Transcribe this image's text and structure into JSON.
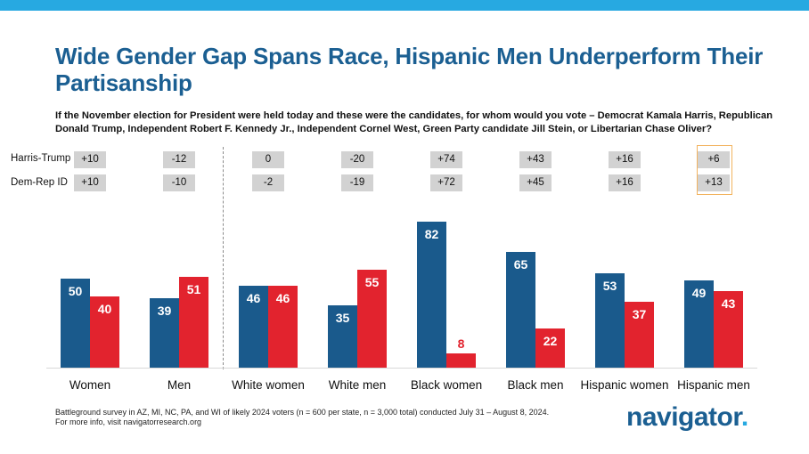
{
  "title": "Wide Gender Gap Spans Race, Hispanic Men Underperform Their Partisanship",
  "subtitle": "If the November election for President were held today and these were the candidates, for whom would you vote – Democrat Kamala Harris, Republican Donald Trump, Independent Robert F. Kennedy Jr., Independent Cornel West, Green Party candidate Jill Stein, or Libertarian Chase Oliver?",
  "rows": {
    "harris_trump": {
      "label": "Harris-Trump",
      "values": [
        "+10",
        "-12",
        "0",
        "-20",
        "+74",
        "+43",
        "+16",
        "+6"
      ]
    },
    "dem_rep": {
      "label": "Dem-Rep ID",
      "values": [
        "+10",
        "-10",
        "-2",
        "-19",
        "+72",
        "+45",
        "+16",
        "+13"
      ]
    }
  },
  "colors": {
    "harris": "#1a5a8c",
    "trump": "#e2232e",
    "accent": "#27a9e1",
    "title": "#1b5f92"
  },
  "chart_data": {
    "type": "bar",
    "categories": [
      "Women",
      "Men",
      "White women",
      "White men",
      "Black women",
      "Black men",
      "Hispanic women",
      "Hispanic men"
    ],
    "series": [
      {
        "name": "Harris",
        "values": [
          50,
          39,
          46,
          35,
          82,
          65,
          53,
          49
        ]
      },
      {
        "name": "Trump",
        "values": [
          40,
          51,
          46,
          55,
          8,
          22,
          37,
          43
        ]
      }
    ],
    "ylim": [
      0,
      100
    ]
  },
  "footnote": {
    "line1": "Battleground survey in AZ, MI, NC, PA, and WI of likely 2024 voters (n = 600 per state, n = 3,000 total) conducted July 31 – August 8, 2024.",
    "line2": "For more info, visit navigatorresearch.org"
  },
  "brand": {
    "name": "navigator",
    "dot": "."
  }
}
